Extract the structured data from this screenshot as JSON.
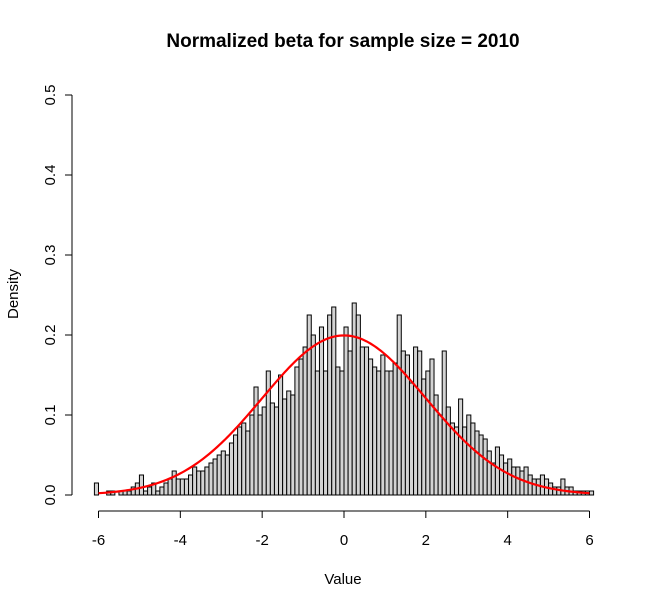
{
  "chart_data": {
    "type": "bar",
    "subtype": "histogram",
    "title": "Normalized beta for sample size =  2010",
    "xlabel": "Value",
    "ylabel": "Density",
    "xlim": [
      -6.25,
      6.25
    ],
    "ylim": [
      0,
      0.5
    ],
    "xticks": [
      -6,
      -4,
      -2,
      0,
      2,
      4,
      6
    ],
    "yticks": [
      0.0,
      0.1,
      0.2,
      0.3,
      0.4,
      0.5
    ],
    "ytick_labels": [
      "0.0",
      "0.1",
      "0.2",
      "0.3",
      "0.4",
      "0.5"
    ],
    "bin_width": 0.1,
    "bin_start": -6.1,
    "histogram_values": [
      0.015,
      0.0,
      0.0,
      0.005,
      0.005,
      0.0,
      0.005,
      0.005,
      0.005,
      0.01,
      0.015,
      0.025,
      0.005,
      0.01,
      0.015,
      0.005,
      0.01,
      0.015,
      0.02,
      0.03,
      0.02,
      0.02,
      0.02,
      0.025,
      0.035,
      0.03,
      0.03,
      0.035,
      0.04,
      0.045,
      0.05,
      0.055,
      0.05,
      0.065,
      0.075,
      0.085,
      0.09,
      0.08,
      0.1,
      0.135,
      0.1,
      0.11,
      0.155,
      0.115,
      0.11,
      0.15,
      0.12,
      0.13,
      0.125,
      0.16,
      0.17,
      0.185,
      0.225,
      0.2,
      0.155,
      0.21,
      0.155,
      0.225,
      0.235,
      0.16,
      0.155,
      0.21,
      0.18,
      0.24,
      0.225,
      0.185,
      0.185,
      0.17,
      0.16,
      0.155,
      0.175,
      0.155,
      0.155,
      0.165,
      0.225,
      0.18,
      0.175,
      0.14,
      0.185,
      0.18,
      0.145,
      0.155,
      0.17,
      0.125,
      0.1,
      0.18,
      0.11,
      0.09,
      0.085,
      0.12,
      0.085,
      0.1,
      0.09,
      0.08,
      0.075,
      0.07,
      0.055,
      0.04,
      0.06,
      0.05,
      0.04,
      0.045,
      0.035,
      0.035,
      0.03,
      0.035,
      0.025,
      0.02,
      0.02,
      0.025,
      0.02,
      0.015,
      0.01,
      0.01,
      0.02,
      0.01,
      0.01,
      0.005,
      0.005,
      0.005,
      0.005,
      0.005
    ],
    "series": [
      {
        "type": "line",
        "color": "#ff0000",
        "mean": 0,
        "sd": 2
      }
    ],
    "grid": false,
    "colors": {
      "bars": "#d3d3d3",
      "bar_edge": "#000000",
      "curve": "#ff0000"
    }
  }
}
